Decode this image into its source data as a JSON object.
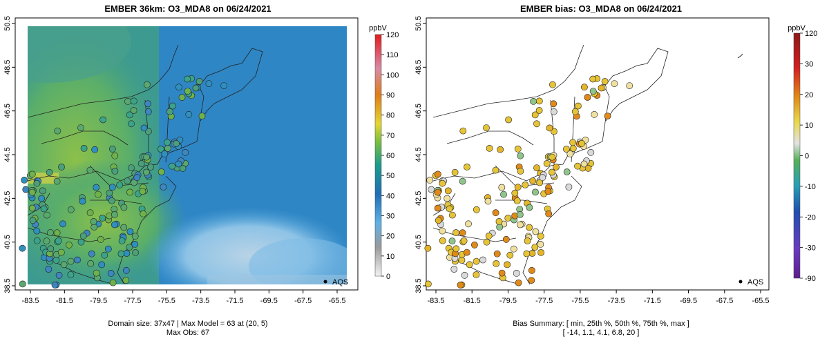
{
  "left": {
    "title": "EMBER 36km: O3_MDA8 on 06/24/2021",
    "x_ticks": [
      "-83.5",
      "-81.5",
      "-79.5",
      "-77.5",
      "-75.5",
      "-73.5",
      "-71.5",
      "-69.5",
      "-67.5",
      "-65.5"
    ],
    "y_ticks": [
      "38.5",
      "40.5",
      "42.5",
      "44.5",
      "46.5",
      "48.5",
      "50.5"
    ],
    "legend_marker": "AQS",
    "footer_line1": "Domain size: 37x47 | Max Model = 63 at (20, 5)",
    "footer_line2": "Max Obs: 67",
    "colorbar_unit": "ppbV",
    "colorbar_labels": [
      "120",
      "110",
      "100",
      "90",
      "80",
      "70",
      "60",
      "50",
      "40",
      "30",
      "20",
      "10",
      "0"
    ]
  },
  "right": {
    "title": "EMBER bias: O3_MDA8 on 06/24/2021",
    "x_ticks": [
      "-83.5",
      "-81.5",
      "-79.5",
      "-77.5",
      "-75.5",
      "-73.5",
      "-71.5",
      "-69.5",
      "-67.5",
      "-65.5"
    ],
    "y_ticks": [
      "38.5",
      "40.5",
      "42.5",
      "44.5",
      "46.5",
      "48.5",
      "50.5"
    ],
    "legend_marker": "AQS",
    "footer_line1": "Bias Summary: [ min, 25th %, 50th %, 75th %, max ]",
    "footer_line2": "[ -14,   1.1,   4.1,   6.8,   20 ]",
    "colorbar_unit": "ppbV",
    "colorbar_labels": [
      "120",
      "30",
      "20",
      "10",
      "0",
      "-10",
      "-20",
      "-30",
      "-90"
    ]
  },
  "colors": {
    "ocean": "#2f86c4",
    "model_high": "#7dbb4c",
    "model_mid": "#3f9e88",
    "obs_fill": "#3a8fae",
    "bias_pos": "#e6c437",
    "bias_neutral": "#d9d9d9"
  }
}
